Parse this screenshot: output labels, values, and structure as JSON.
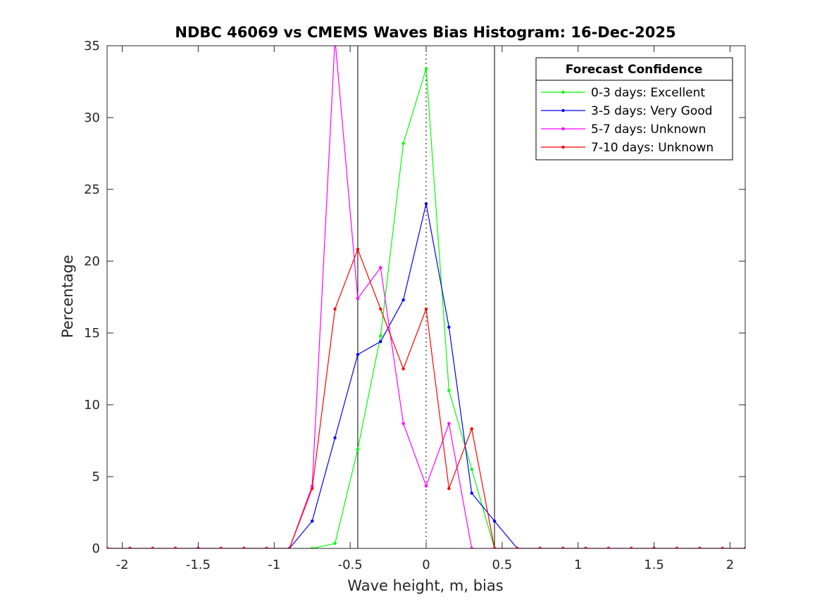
{
  "chart_data": {
    "type": "line",
    "title": "NDBC 46069 vs CMEMS Waves Bias Histogram: 16-Dec-2025",
    "xlabel": "Wave height, m, bias",
    "ylabel": "Percentage",
    "xlim": [
      -2.1,
      2.1
    ],
    "ylim": [
      0,
      35
    ],
    "xticks": [
      -2,
      -1.5,
      -1,
      -0.5,
      0,
      0.5,
      1,
      1.5,
      2
    ],
    "xtick_labels": [
      "-2",
      "-1.5",
      "-1",
      "-0.5",
      "0",
      "0.5",
      "1",
      "1.5",
      "2"
    ],
    "yticks": [
      0,
      5,
      10,
      15,
      20,
      25,
      30,
      35
    ],
    "ytick_labels": [
      "0",
      "5",
      "10",
      "15",
      "20",
      "25",
      "30",
      "35"
    ],
    "grid": false,
    "reference_lines": [
      {
        "x": -0.45,
        "style": "solid",
        "color": "#000000"
      },
      {
        "x": 0,
        "style": "dotted",
        "color": "#000000"
      },
      {
        "x": 0.45,
        "style": "solid",
        "color": "#000000"
      }
    ],
    "legend": {
      "title": "Forecast Confidence",
      "location": "top-right"
    },
    "x": [
      -2.1,
      -1.95,
      -1.8,
      -1.65,
      -1.5,
      -1.35,
      -1.2,
      -1.05,
      -0.9,
      -0.75,
      -0.6,
      -0.45,
      -0.3,
      -0.15,
      0,
      0.15,
      0.3,
      0.45,
      0.6,
      0.75,
      0.9,
      1.05,
      1.2,
      1.35,
      1.5,
      1.65,
      1.8,
      1.95,
      2.1
    ],
    "series": [
      {
        "name": "0-3 days: Excellent",
        "color": "#00ff00",
        "values": [
          0,
          0,
          0,
          0,
          0,
          0,
          0,
          0,
          0,
          0,
          0.35,
          6.9,
          14.8,
          28.2,
          33.4,
          11.0,
          5.5,
          0,
          0,
          0,
          0,
          0,
          0,
          0,
          0,
          0,
          0,
          0,
          0
        ]
      },
      {
        "name": "3-5 days: Very Good",
        "color": "#0000ff",
        "values": [
          0,
          0,
          0,
          0,
          0,
          0,
          0,
          0,
          0,
          1.9,
          7.7,
          13.5,
          14.4,
          17.3,
          24.0,
          15.4,
          3.85,
          1.9,
          0,
          0,
          0,
          0,
          0,
          0,
          0,
          0,
          0,
          0,
          0
        ]
      },
      {
        "name": "5-7 days: Unknown",
        "color": "#ff00ff",
        "values": [
          0,
          0,
          0,
          0,
          0,
          0,
          0,
          0,
          0,
          4.35,
          35.5,
          17.4,
          19.55,
          8.7,
          4.35,
          8.7,
          0,
          0,
          0,
          0,
          0,
          0,
          0,
          0,
          0,
          0,
          0,
          0,
          0
        ]
      },
      {
        "name": "7-10 days: Unknown",
        "color": "#ff0000",
        "values": [
          0,
          0,
          0,
          0,
          0,
          0,
          0,
          0,
          0,
          4.17,
          16.67,
          20.83,
          16.67,
          12.5,
          16.67,
          4.17,
          8.33,
          0,
          0,
          0,
          0,
          0,
          0,
          0,
          0,
          0,
          0,
          0,
          0
        ]
      }
    ]
  }
}
